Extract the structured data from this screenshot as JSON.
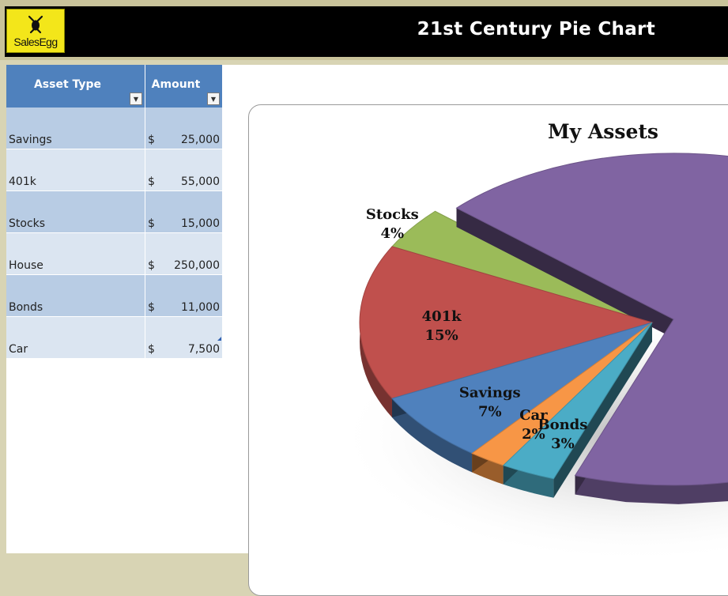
{
  "header": {
    "logo_text": "SalesEgg",
    "title": "21st Century Pie Chart"
  },
  "table": {
    "columns": [
      "Asset Type",
      "Amount"
    ],
    "currency_symbol": "$",
    "rows": [
      {
        "type": "Savings",
        "amount": "25,000"
      },
      {
        "type": "401k",
        "amount": "55,000"
      },
      {
        "type": "Stocks",
        "amount": "15,000"
      },
      {
        "type": "House",
        "amount": "250,000"
      },
      {
        "type": "Bonds",
        "amount": "11,000"
      },
      {
        "type": "Car",
        "amount": "7,500"
      }
    ]
  },
  "colors": {
    "header_bg": "#000000",
    "logo_bg": "#f3e61a",
    "table_header": "#4f81bd",
    "row_dark": "#b8cce4",
    "row_light": "#dbe5f1"
  },
  "chart_data": {
    "type": "pie",
    "title": "My Assets",
    "style": "3D exploded",
    "slices": [
      {
        "label": "Savings",
        "value": 25000,
        "percent": "7%",
        "color": "#4f81bd"
      },
      {
        "label": "401k",
        "value": 55000,
        "percent": "15%",
        "color": "#c0504d"
      },
      {
        "label": "Stocks",
        "value": 15000,
        "percent": "4%",
        "color": "#9bbb59"
      },
      {
        "label": "House",
        "value": 250000,
        "percent": "",
        "color": "#8064a2"
      },
      {
        "label": "Bonds",
        "value": 11000,
        "percent": "3%",
        "color": "#4bacc6"
      },
      {
        "label": "Car",
        "value": 7500,
        "percent": "2%",
        "color": "#f79646"
      }
    ]
  }
}
